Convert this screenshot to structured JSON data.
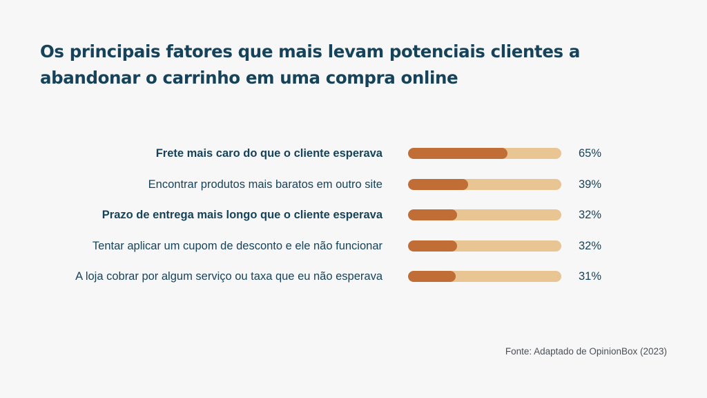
{
  "header": {
    "title": "Os principais fatores que mais levam potenciais clientes a abandonar o carrinho em uma compra online"
  },
  "chart_data": {
    "type": "bar",
    "orientation": "horizontal",
    "categories": [
      "Frete mais caro do que o cliente esperava",
      "Encontrar produtos mais baratos em outro site",
      "Prazo de entrega mais longo que o cliente esperava",
      "Tentar aplicar um cupom de desconto e ele não funcionar",
      "A loja cobrar por algum serviço ou taxa que eu não esperava"
    ],
    "values": [
      65,
      39,
      32,
      32,
      31
    ],
    "value_labels": [
      "65%",
      "39%",
      "32%",
      "32%",
      "31%"
    ],
    "bold_categories": [
      true,
      false,
      true,
      false,
      false
    ],
    "xlim": [
      0,
      100
    ],
    "unit": "%",
    "grid": false,
    "legend": "none",
    "colors": {
      "fill": "#c06d36",
      "track": "#e8c593",
      "text": "#17435a"
    }
  },
  "footer": {
    "source": "Fonte: Adaptado de OpinionBox (2023)"
  }
}
